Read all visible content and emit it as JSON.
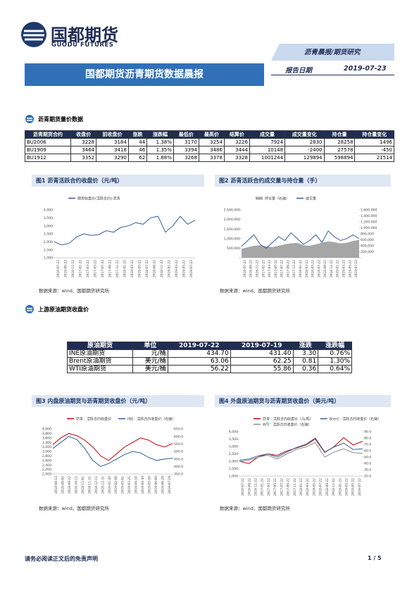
{
  "header": {
    "brand": "国都期货",
    "brand_en": "GUODU FUTURES",
    "category": "沥青晨报/期货研究",
    "title": "国都期货沥青期货数据晨报",
    "date_label": "报告日期",
    "date": "2019-07-23"
  },
  "section1": "沥青期货量价数据",
  "table1": {
    "columns": [
      "沥青期货合约",
      "收盘价",
      "前收盘价",
      "涨跌",
      "涨跌幅",
      "最低价",
      "最高价",
      "结算价",
      "成交量",
      "成交量变化",
      "持仓量",
      "持仓量变化"
    ],
    "rows": [
      [
        "BU2006",
        "3228",
        "3184",
        "44",
        "1.38%",
        "3170",
        "3254",
        "3226",
        "7924",
        "2830",
        "28258",
        "1496"
      ],
      [
        "BU1909",
        "3464",
        "3418",
        "46",
        "1.35%",
        "3394",
        "3486",
        "3444",
        "10148",
        "-2400",
        "27578",
        "-450"
      ],
      [
        "BU1912",
        "3352",
        "3290",
        "62",
        "1.88%",
        "3268",
        "3378",
        "3328",
        "1001244",
        "129894",
        "598894",
        "21514"
      ]
    ]
  },
  "figures": [
    {
      "title": "图1 沥青活跃合约收盘价（元/吨）",
      "source": "数据来源：wind、国都期货研究所",
      "xlabels": [
        "2016-07-22",
        "2016-09-22",
        "2016-11-22",
        "2017-01-22",
        "2017-03-22",
        "2017-05-22",
        "2017-07-22",
        "2017-09-22",
        "2017-11-22",
        "2018-01-22",
        "2018-03-22",
        "2018-05-22",
        "2018-07-22",
        "2018-09-22",
        "2018-11-22",
        "2019-01-22",
        "2019-03-22",
        "2019-05-22",
        "2019-07-22"
      ],
      "ylim": [
        1000,
        4000
      ],
      "yticks": [
        {
          "value": 1000,
          "label": "1,000"
        },
        {
          "value": 1500,
          "label": "1,500"
        },
        {
          "value": 2000,
          "label": "2,000"
        },
        {
          "value": 2500,
          "label": "2,500"
        },
        {
          "value": 3000,
          "label": "3,000"
        },
        {
          "value": 3500,
          "label": "3,500"
        },
        {
          "value": 4000,
          "label": "4,000"
        }
      ],
      "series": [
        {
          "name": "期货收盘价(活跃合约):沥青",
          "color": "#2e5e9e",
          "type": "line",
          "values": [
            2000,
            1800,
            1900,
            2300,
            2500,
            2400,
            2450,
            2700,
            2600,
            2900,
            3000,
            3200,
            3100,
            3500,
            3600,
            2600,
            3000,
            3600,
            3100,
            3350
          ]
        }
      ]
    },
    {
      "title": "图2 沥青活跃合约成交量与持仓量（手）",
      "source": "数据来源：wind、国都期货研究所",
      "xlabels": [
        "2016-07-22",
        "2016-09-22",
        "2016-11-22",
        "2017-01-22",
        "2017-03-22",
        "2017-05-22",
        "2017-07-22",
        "2017-09-22",
        "2017-11-22",
        "2018-01-22",
        "2018-03-22",
        "2018-05-22",
        "2018-07-22",
        "2018-09-22",
        "2018-11-22",
        "2019-01-22",
        "2019-03-22",
        "2019-05-22",
        "2019-07-22"
      ],
      "ylim": [
        0,
        2500000
      ],
      "yticks": [
        {
          "value": 0,
          "label": "-"
        },
        {
          "value": 500000,
          "label": "500,000"
        },
        {
          "value": 1000000,
          "label": "1,000,000"
        },
        {
          "value": 1500000,
          "label": "1,500,000"
        },
        {
          "value": 2000000,
          "label": "2,000,000"
        },
        {
          "value": 2500000,
          "label": "2,500,000"
        }
      ],
      "y2lim": [
        0,
        1600000
      ],
      "y2ticks": [
        {
          "value": 0,
          "label": "-"
        },
        {
          "value": 200000,
          "label": "200,000"
        },
        {
          "value": 400000,
          "label": "400,000"
        },
        {
          "value": 600000,
          "label": "600,000"
        },
        {
          "value": 800000,
          "label": "800,000"
        },
        {
          "value": 1000000,
          "label": "1,000,000"
        },
        {
          "value": 1200000,
          "label": "1,200,000"
        },
        {
          "value": 1400000,
          "label": "1,400,000"
        },
        {
          "value": 1600000,
          "label": "1,600,000"
        }
      ],
      "series": [
        {
          "name": "持仓量（右轴）",
          "color": "#a6a6a6",
          "type": "area",
          "axis": "y2",
          "values": [
            300000,
            350000,
            400000,
            420000,
            380000,
            360000,
            400000,
            450000,
            480000,
            500000,
            420000,
            400000,
            450000,
            500000,
            550000,
            520000,
            480000,
            500000,
            560000,
            600000
          ]
        },
        {
          "name": "成交量",
          "color": "#2e5e9e",
          "type": "line",
          "values": [
            600000,
            900000,
            1200000,
            700000,
            500000,
            800000,
            1100000,
            900000,
            1300000,
            1000000,
            700000,
            900000,
            1200000,
            800000,
            1400000,
            1100000,
            900000,
            1000000,
            1200000,
            1000000
          ]
        }
      ]
    },
    {
      "title": "图3 内盘原油期货与沥青期货收盘价（元/吨）",
      "source": "数据来源：wind、国都期货研究所",
      "xlabels": [
        "2018-08-13",
        "2018-09-02",
        "2018-09-22",
        "2018-10-12",
        "2018-11-01",
        "2018-11-21",
        "2018-12-11",
        "2018-12-31",
        "2019-01-20",
        "2019-02-09",
        "2019-03-01",
        "2019-03-21",
        "2019-04-10",
        "2019-04-30",
        "2019-05-20",
        "2019-06-09",
        "2019-06-29",
        "2019-07-19"
      ],
      "ylim": [
        2000,
        4000
      ],
      "yticks": [
        {
          "value": 2000,
          "label": "2,000"
        },
        {
          "value": 2200,
          "label": "2,200"
        },
        {
          "value": 2400,
          "label": "2,400"
        },
        {
          "value": 2600,
          "label": "2,600"
        },
        {
          "value": 2800,
          "label": "2,800"
        },
        {
          "value": 3000,
          "label": "3,000"
        },
        {
          "value": 3200,
          "label": "3,200"
        },
        {
          "value": 3400,
          "label": "3,400"
        },
        {
          "value": 3600,
          "label": "3,600"
        },
        {
          "value": 3800,
          "label": "3,800"
        },
        {
          "value": 4000,
          "label": "4,000"
        }
      ],
      "y2lim": [
        350,
        650
      ],
      "y2ticks": [
        {
          "value": 350,
          "label": "350.0"
        },
        {
          "value": 400,
          "label": "400.0"
        },
        {
          "value": 450,
          "label": "450.0"
        },
        {
          "value": 500,
          "label": "500.0"
        },
        {
          "value": 550,
          "label": "550.0"
        },
        {
          "value": 600,
          "label": "600.0"
        },
        {
          "value": 650,
          "label": "650.0"
        }
      ],
      "series": [
        {
          "name": "沥青：活跃合约收盘价",
          "color": "#c00000",
          "type": "line",
          "values": [
            3300,
            3600,
            3800,
            3700,
            3500,
            3200,
            2800,
            2600,
            2900,
            3200,
            3400,
            3600,
            3500,
            3300,
            3200,
            3350
          ]
        },
        {
          "name": "INE：活跃合约收盘价（右轴）",
          "color": "#2e5e9e",
          "type": "line",
          "axis": "y2",
          "values": [
            520,
            560,
            600,
            580,
            520,
            440,
            400,
            420,
            450,
            480,
            500,
            490,
            460,
            440,
            450,
            455
          ]
        }
      ]
    },
    {
      "title": "图4 外盘原油期货与沥青期货收盘价（美元/吨）",
      "source": "数据来源：wind、国都期货研究所",
      "xlabels": [
        "2016-07-22",
        "2016-09-22",
        "2016-11-22",
        "2017-01-22",
        "2017-03-22",
        "2017-05-22",
        "2017-07-22",
        "2017-09-22",
        "2017-11-22",
        "2018-01-22",
        "2018-03-22",
        "2018-05-22",
        "2018-07-22",
        "2018-09-22",
        "2018-11-22",
        "2019-01-22",
        "2019-03-22",
        "2019-05-22",
        "2019-07-22"
      ],
      "ylim": [
        1000,
        4000
      ],
      "yticks": [
        {
          "value": 1000,
          "label": "1,000"
        },
        {
          "value": 1500,
          "label": "1,500"
        },
        {
          "value": 2000,
          "label": "2,000"
        },
        {
          "value": 2500,
          "label": "2,500"
        },
        {
          "value": 3000,
          "label": "3,000"
        },
        {
          "value": 3500,
          "label": "3,500"
        },
        {
          "value": 4000,
          "label": "4,000"
        }
      ],
      "y2lim": [
        20,
        90
      ],
      "y2ticks": [
        {
          "value": 20,
          "label": "20.0"
        },
        {
          "value": 30,
          "label": "30.0"
        },
        {
          "value": 40,
          "label": "40.0"
        },
        {
          "value": 50,
          "label": "50.0"
        },
        {
          "value": 60,
          "label": "60.0"
        },
        {
          "value": 70,
          "label": "70.0"
        },
        {
          "value": 80,
          "label": "80.0"
        },
        {
          "value": 90,
          "label": "90.0"
        }
      ],
      "series": [
        {
          "name": "沥青：活跃合约收盘价（元/吨）",
          "color": "#c00000",
          "type": "line",
          "values": [
            2000,
            1850,
            2300,
            2500,
            2400,
            2700,
            2900,
            3100,
            3500,
            2600,
            3000,
            3600,
            3100,
            3350
          ]
        },
        {
          "name": "Brent：活跃合约收盘价（右轴）",
          "color": "#2e5e9e",
          "type": "line",
          "axis": "y2",
          "values": [
            45,
            47,
            52,
            55,
            50,
            58,
            65,
            70,
            80,
            58,
            66,
            72,
            62,
            63
          ]
        },
        {
          "name": "WTI：活跃合约收盘价（右轴）",
          "color": "#8c8c8c",
          "type": "line",
          "axis": "y2",
          "values": [
            43,
            45,
            50,
            53,
            47,
            55,
            62,
            66,
            73,
            50,
            58,
            63,
            57,
            56
          ]
        }
      ]
    }
  ],
  "section2": "上游原油期货收盘价",
  "table2": {
    "columns": [
      "原油期货",
      "单位",
      "2019-07-22",
      "2019-07-19",
      "涨跌",
      "涨跌幅"
    ],
    "rows": [
      [
        "INE原油期货",
        "元/桶",
        "434.70",
        "431.40",
        "3.30",
        "0.76%"
      ],
      [
        "Brent原油期货",
        "美元/桶",
        "63.06",
        "62.25",
        "0.81",
        "1.30%"
      ],
      [
        "WTI原油期货",
        "美元/桶",
        "56.22",
        "55.86",
        "0.36",
        "0.64%"
      ]
    ]
  },
  "footer": {
    "disclaimer": "请务必阅读正文后的免责声明",
    "page": "1 / 5"
  }
}
